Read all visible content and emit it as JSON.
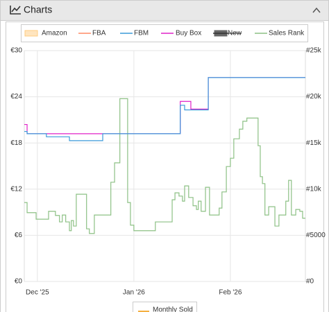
{
  "header": {
    "title": "Charts"
  },
  "chart_data": {
    "type": "line",
    "step": true,
    "xlim": [
      -4.2,
      86.1
    ],
    "xticks": [
      {
        "value": 0,
        "label": "Dec '25"
      },
      {
        "value": 31,
        "label": "Jan '26"
      },
      {
        "value": 62,
        "label": "Feb '26"
      }
    ],
    "ylim": [
      0,
      30
    ],
    "yticks": [
      {
        "value": 0,
        "label": "€0"
      },
      {
        "value": 6,
        "label": "€6"
      },
      {
        "value": 12,
        "label": "€12"
      },
      {
        "value": 18,
        "label": "€18"
      },
      {
        "value": 24,
        "label": "€24"
      },
      {
        "value": 30,
        "label": "€30"
      }
    ],
    "y2lim": [
      0,
      25000
    ],
    "y2ticks": [
      {
        "value": 0,
        "label": "#0"
      },
      {
        "value": 5000,
        "label": "#5000"
      },
      {
        "value": 10000,
        "label": "#10k"
      },
      {
        "value": 15000,
        "label": "#15k"
      },
      {
        "value": 20000,
        "label": "#20k"
      },
      {
        "value": 25000,
        "label": "#25k"
      }
    ],
    "grid": true,
    "series": [
      {
        "name": "Amazon",
        "color": "#ffcc80",
        "swatch": "box",
        "x": [],
        "values": []
      },
      {
        "name": "FBA",
        "color": "#ff8a65",
        "swatch": "line",
        "x": [],
        "values": []
      },
      {
        "name": "FBM",
        "color": "#3a9ad9",
        "swatch": "line",
        "x": [
          -4.2,
          -3.3,
          2.9,
          10.3,
          21.0,
          45.9,
          47.3,
          54.9
        ],
        "values": [
          19.5,
          19.2,
          18.8,
          18.3,
          19.2,
          22.9,
          22.3,
          26.5
        ]
      },
      {
        "name": "Buy Box",
        "color": "#e020c8",
        "swatch": "line",
        "x": [
          -4.2,
          -3.3,
          45.9,
          49.3,
          54.9
        ],
        "values": [
          20.4,
          19.2,
          23.4,
          22.4,
          26.5
        ]
      },
      {
        "name": "New",
        "color": "#666666",
        "swatch": "box",
        "hidden": true,
        "x": [],
        "values": []
      },
      {
        "name": "Sales Rank",
        "color": "#8cc084",
        "swatch": "line",
        "axis": "y2",
        "x": [
          -4.2,
          -3.3,
          -0.4,
          3.6,
          5.8,
          7.1,
          8.0,
          9.1,
          10.3,
          10.9,
          11.6,
          12.5,
          15.8,
          16.7,
          18.3,
          23.6,
          24.8,
          26.5,
          29.0,
          29.9,
          31.0,
          37.9,
          43.3,
          44.2,
          45.5,
          46.6,
          47.3,
          48.6,
          50.0,
          51.1,
          51.7,
          52.6,
          54.0,
          55.3,
          58.4,
          59.3,
          60.7,
          62.0,
          63.1,
          64.9,
          66.0,
          67.3,
          70.9,
          71.6,
          72.3,
          73.1,
          74.3,
          76.3,
          77.6,
          79.8,
          80.7,
          81.6,
          83.0,
          84.3,
          85.2
        ],
        "values": [
          8550,
          7450,
          6750,
          7600,
          7150,
          6450,
          7200,
          6450,
          5500,
          6600,
          6000,
          9450,
          5700,
          5200,
          7200,
          10750,
          12850,
          19800,
          8550,
          6100,
          5500,
          6450,
          8850,
          9600,
          9250,
          8700,
          10350,
          9100,
          8200,
          7800,
          8700,
          7600,
          10200,
          7200,
          7950,
          9700,
          12450,
          13350,
          15450,
          16500,
          17350,
          17700,
          14700,
          11350,
          10600,
          7200,
          8100,
          6000,
          7200,
          8700,
          10950,
          7200,
          7800,
          7600,
          6850
        ]
      }
    ],
    "bottom_legend": {
      "name": "Monthly Sold",
      "color": "#f5b041"
    }
  }
}
